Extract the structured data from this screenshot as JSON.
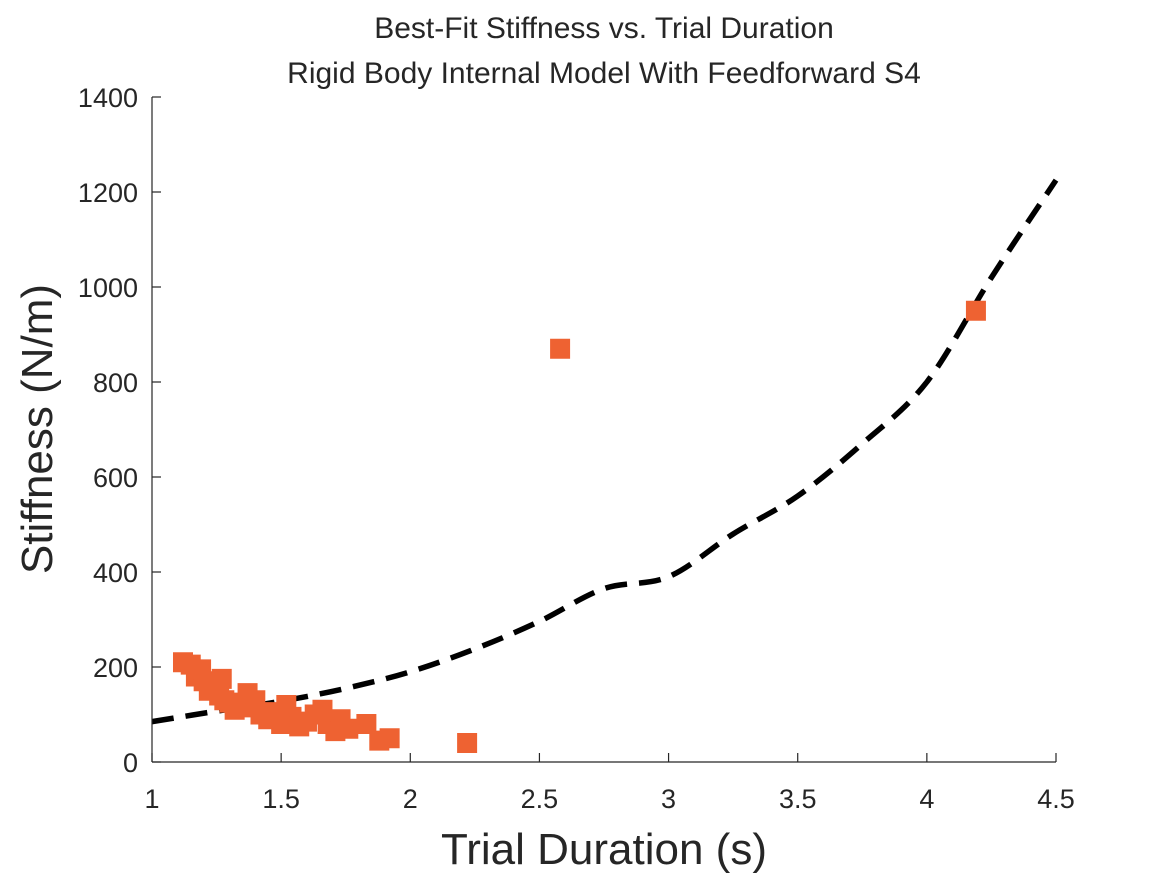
{
  "chart_data": {
    "type": "scatter",
    "title": [
      "Best-Fit Stiffness vs. Trial Duration",
      "Rigid Body Internal Model With Feedforward S4"
    ],
    "xlabel": "Trial Duration (s)",
    "ylabel": "Stiffness (N/m)",
    "xlim": [
      1,
      4.5
    ],
    "ylim": [
      0,
      1400
    ],
    "xticks": [
      1,
      1.5,
      2,
      2.5,
      3,
      3.5,
      4,
      4.5
    ],
    "xtick_labels": [
      "1",
      "1.5",
      "2",
      "2.5",
      "3",
      "3.5",
      "4",
      "4.5"
    ],
    "yticks": [
      0,
      200,
      400,
      600,
      800,
      1000,
      1200,
      1400
    ],
    "ytick_labels": [
      "0",
      "200",
      "400",
      "600",
      "800",
      "1000",
      "1200",
      "1400"
    ],
    "grid": false,
    "series": [
      {
        "kind": "points",
        "marker": "square",
        "color": "#EE6232",
        "points": [
          [
            1.12,
            210
          ],
          [
            1.15,
            205
          ],
          [
            1.17,
            180
          ],
          [
            1.19,
            195
          ],
          [
            1.2,
            170
          ],
          [
            1.22,
            150
          ],
          [
            1.24,
            160
          ],
          [
            1.26,
            140
          ],
          [
            1.27,
            175
          ],
          [
            1.28,
            130
          ],
          [
            1.3,
            125
          ],
          [
            1.32,
            110
          ],
          [
            1.35,
            115
          ],
          [
            1.37,
            145
          ],
          [
            1.4,
            130
          ],
          [
            1.42,
            100
          ],
          [
            1.45,
            90
          ],
          [
            1.47,
            105
          ],
          [
            1.5,
            80
          ],
          [
            1.52,
            120
          ],
          [
            1.54,
            95
          ],
          [
            1.57,
            75
          ],
          [
            1.6,
            85
          ],
          [
            1.63,
            100
          ],
          [
            1.66,
            110
          ],
          [
            1.68,
            80
          ],
          [
            1.71,
            65
          ],
          [
            1.73,
            90
          ],
          [
            1.76,
            70
          ],
          [
            1.83,
            80
          ],
          [
            1.88,
            45
          ],
          [
            1.92,
            50
          ],
          [
            2.22,
            40
          ],
          [
            2.58,
            870
          ],
          [
            4.19,
            950
          ]
        ]
      },
      {
        "kind": "fit",
        "style": "dashed",
        "color": "#000000",
        "points": [
          [
            1.0,
            85
          ],
          [
            1.25,
            107
          ],
          [
            1.5,
            128
          ],
          [
            1.75,
            155
          ],
          [
            2.0,
            190
          ],
          [
            2.25,
            238
          ],
          [
            2.5,
            296
          ],
          [
            2.75,
            365
          ],
          [
            3.0,
            390
          ],
          [
            3.25,
            480
          ],
          [
            3.5,
            560
          ],
          [
            3.75,
            670
          ],
          [
            4.0,
            800
          ],
          [
            4.25,
            1020
          ],
          [
            4.5,
            1225
          ]
        ]
      }
    ]
  }
}
